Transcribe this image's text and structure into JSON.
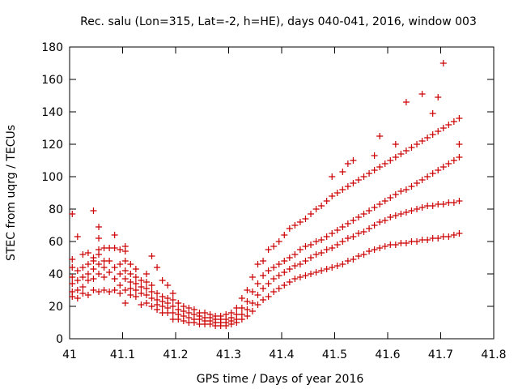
{
  "chart_data": {
    "type": "scatter",
    "title": "Rec. salu (Lon=315, Lat=-2, h=HE), days 040-041, 2016, window 003",
    "xlabel": "GPS time / Days of year 2016",
    "ylabel": "STEC from uqrg / TECUs",
    "xlim": [
      41,
      41.8
    ],
    "ylim": [
      0,
      180
    ],
    "xticks": [
      "41",
      "41.1",
      "41.2",
      "41.3",
      "41.4",
      "41.5",
      "41.6",
      "41.7",
      "41.8"
    ],
    "yticks": [
      "0",
      "20",
      "40",
      "60",
      "80",
      "100",
      "120",
      "140",
      "160",
      "180"
    ],
    "grid": false,
    "legend": "none",
    "marker": "plus",
    "color": "#cc0000",
    "points": [
      [
        41.005,
        26
      ],
      [
        41.005,
        29
      ],
      [
        41.005,
        34
      ],
      [
        41.005,
        38
      ],
      [
        41.005,
        44
      ],
      [
        41.005,
        49
      ],
      [
        41.005,
        77
      ],
      [
        41.015,
        25
      ],
      [
        41.015,
        30
      ],
      [
        41.015,
        36
      ],
      [
        41.015,
        42
      ],
      [
        41.015,
        63
      ],
      [
        41.025,
        28
      ],
      [
        41.025,
        32
      ],
      [
        41.025,
        38
      ],
      [
        41.025,
        44
      ],
      [
        41.025,
        52
      ],
      [
        41.035,
        27
      ],
      [
        41.035,
        36
      ],
      [
        41.035,
        40
      ],
      [
        41.035,
        46
      ],
      [
        41.035,
        53
      ],
      [
        41.045,
        30
      ],
      [
        41.045,
        37
      ],
      [
        41.045,
        43
      ],
      [
        41.045,
        48
      ],
      [
        41.045,
        50
      ],
      [
        41.045,
        79
      ],
      [
        41.055,
        29
      ],
      [
        41.055,
        40
      ],
      [
        41.055,
        46
      ],
      [
        41.055,
        52
      ],
      [
        41.055,
        55
      ],
      [
        41.055,
        62
      ],
      [
        41.055,
        69
      ],
      [
        41.065,
        30
      ],
      [
        41.065,
        38
      ],
      [
        41.065,
        44
      ],
      [
        41.065,
        48
      ],
      [
        41.065,
        56
      ],
      [
        41.075,
        29
      ],
      [
        41.075,
        41
      ],
      [
        41.075,
        48
      ],
      [
        41.075,
        56
      ],
      [
        41.085,
        30
      ],
      [
        41.085,
        37
      ],
      [
        41.085,
        44
      ],
      [
        41.085,
        56
      ],
      [
        41.085,
        64
      ],
      [
        41.095,
        28
      ],
      [
        41.095,
        33
      ],
      [
        41.095,
        40
      ],
      [
        41.095,
        46
      ],
      [
        41.095,
        55
      ],
      [
        41.105,
        22
      ],
      [
        41.105,
        30
      ],
      [
        41.105,
        37
      ],
      [
        41.105,
        42
      ],
      [
        41.105,
        48
      ],
      [
        41.105,
        54
      ],
      [
        41.105,
        57
      ],
      [
        41.115,
        27
      ],
      [
        41.115,
        31
      ],
      [
        41.115,
        35
      ],
      [
        41.115,
        40
      ],
      [
        41.115,
        46
      ],
      [
        41.125,
        26
      ],
      [
        41.125,
        30
      ],
      [
        41.125,
        34
      ],
      [
        41.125,
        38
      ],
      [
        41.125,
        43
      ],
      [
        41.135,
        21
      ],
      [
        41.135,
        28
      ],
      [
        41.135,
        32
      ],
      [
        41.135,
        36
      ],
      [
        41.145,
        22
      ],
      [
        41.145,
        27
      ],
      [
        41.145,
        31
      ],
      [
        41.145,
        35
      ],
      [
        41.145,
        40
      ],
      [
        41.155,
        20
      ],
      [
        41.155,
        25
      ],
      [
        41.155,
        29
      ],
      [
        41.155,
        33
      ],
      [
        41.155,
        51
      ],
      [
        41.165,
        18
      ],
      [
        41.165,
        21
      ],
      [
        41.165,
        24
      ],
      [
        41.165,
        28
      ],
      [
        41.165,
        44
      ],
      [
        41.175,
        16
      ],
      [
        41.175,
        20
      ],
      [
        41.175,
        23
      ],
      [
        41.175,
        26
      ],
      [
        41.175,
        36
      ],
      [
        41.185,
        16
      ],
      [
        41.185,
        19
      ],
      [
        41.185,
        22
      ],
      [
        41.185,
        25
      ],
      [
        41.185,
        33
      ],
      [
        41.195,
        12
      ],
      [
        41.195,
        16
      ],
      [
        41.195,
        20
      ],
      [
        41.195,
        24
      ],
      [
        41.195,
        28
      ],
      [
        41.205,
        12
      ],
      [
        41.205,
        15
      ],
      [
        41.205,
        18
      ],
      [
        41.205,
        22
      ],
      [
        41.215,
        11
      ],
      [
        41.215,
        14
      ],
      [
        41.215,
        17
      ],
      [
        41.215,
        20
      ],
      [
        41.225,
        10
      ],
      [
        41.225,
        13
      ],
      [
        41.225,
        16
      ],
      [
        41.225,
        19
      ],
      [
        41.235,
        10
      ],
      [
        41.235,
        12
      ],
      [
        41.235,
        15
      ],
      [
        41.235,
        18
      ],
      [
        41.245,
        9
      ],
      [
        41.245,
        12
      ],
      [
        41.245,
        14
      ],
      [
        41.245,
        16
      ],
      [
        41.255,
        9
      ],
      [
        41.255,
        11
      ],
      [
        41.255,
        13
      ],
      [
        41.255,
        16
      ],
      [
        41.265,
        9
      ],
      [
        41.265,
        11
      ],
      [
        41.265,
        13
      ],
      [
        41.265,
        15
      ],
      [
        41.275,
        8
      ],
      [
        41.275,
        10
      ],
      [
        41.275,
        12
      ],
      [
        41.275,
        14
      ],
      [
        41.285,
        8
      ],
      [
        41.285,
        10
      ],
      [
        41.285,
        12
      ],
      [
        41.285,
        14
      ],
      [
        41.295,
        8
      ],
      [
        41.295,
        10
      ],
      [
        41.295,
        12
      ],
      [
        41.295,
        15
      ],
      [
        41.305,
        9
      ],
      [
        41.305,
        11
      ],
      [
        41.305,
        13
      ],
      [
        41.305,
        16
      ],
      [
        41.315,
        10
      ],
      [
        41.315,
        12
      ],
      [
        41.315,
        15
      ],
      [
        41.315,
        19
      ],
      [
        41.325,
        12
      ],
      [
        41.325,
        15
      ],
      [
        41.325,
        19
      ],
      [
        41.325,
        25
      ],
      [
        41.335,
        14
      ],
      [
        41.335,
        18
      ],
      [
        41.335,
        23
      ],
      [
        41.335,
        30
      ],
      [
        41.345,
        17
      ],
      [
        41.345,
        22
      ],
      [
        41.345,
        29
      ],
      [
        41.345,
        38
      ],
      [
        41.355,
        21
      ],
      [
        41.355,
        27
      ],
      [
        41.355,
        34
      ],
      [
        41.355,
        46
      ],
      [
        41.365,
        24
      ],
      [
        41.365,
        31
      ],
      [
        41.365,
        39
      ],
      [
        41.365,
        48
      ],
      [
        41.375,
        26
      ],
      [
        41.375,
        34
      ],
      [
        41.375,
        42
      ],
      [
        41.375,
        55
      ],
      [
        41.385,
        29
      ],
      [
        41.385,
        37
      ],
      [
        41.385,
        44
      ],
      [
        41.385,
        57
      ],
      [
        41.395,
        31
      ],
      [
        41.395,
        39
      ],
      [
        41.395,
        46
      ],
      [
        41.395,
        60
      ],
      [
        41.405,
        33
      ],
      [
        41.405,
        41
      ],
      [
        41.405,
        48
      ],
      [
        41.405,
        64
      ],
      [
        41.415,
        35
      ],
      [
        41.415,
        43
      ],
      [
        41.415,
        50
      ],
      [
        41.415,
        68
      ],
      [
        41.425,
        37
      ],
      [
        41.425,
        45
      ],
      [
        41.425,
        52
      ],
      [
        41.425,
        70
      ],
      [
        41.435,
        38
      ],
      [
        41.435,
        46
      ],
      [
        41.435,
        55
      ],
      [
        41.435,
        72
      ],
      [
        41.445,
        39
      ],
      [
        41.445,
        48
      ],
      [
        41.445,
        57
      ],
      [
        41.445,
        74
      ],
      [
        41.455,
        40
      ],
      [
        41.455,
        50
      ],
      [
        41.455,
        58
      ],
      [
        41.455,
        77
      ],
      [
        41.465,
        41
      ],
      [
        41.465,
        52
      ],
      [
        41.465,
        60
      ],
      [
        41.465,
        80
      ],
      [
        41.475,
        42
      ],
      [
        41.475,
        53
      ],
      [
        41.475,
        61
      ],
      [
        41.475,
        82
      ],
      [
        41.485,
        43
      ],
      [
        41.485,
        55
      ],
      [
        41.485,
        63
      ],
      [
        41.485,
        85
      ],
      [
        41.495,
        44
      ],
      [
        41.495,
        56
      ],
      [
        41.495,
        65
      ],
      [
        41.495,
        88
      ],
      [
        41.495,
        100
      ],
      [
        41.505,
        45
      ],
      [
        41.505,
        58
      ],
      [
        41.505,
        67
      ],
      [
        41.505,
        90
      ],
      [
        41.515,
        46
      ],
      [
        41.515,
        60
      ],
      [
        41.515,
        69
      ],
      [
        41.515,
        92
      ],
      [
        41.515,
        103
      ],
      [
        41.525,
        48
      ],
      [
        41.525,
        62
      ],
      [
        41.525,
        71
      ],
      [
        41.525,
        94
      ],
      [
        41.525,
        108
      ],
      [
        41.535,
        49
      ],
      [
        41.535,
        63
      ],
      [
        41.535,
        73
      ],
      [
        41.535,
        96
      ],
      [
        41.535,
        110
      ],
      [
        41.545,
        51
      ],
      [
        41.545,
        65
      ],
      [
        41.545,
        75
      ],
      [
        41.545,
        98
      ],
      [
        41.555,
        52
      ],
      [
        41.555,
        66
      ],
      [
        41.555,
        77
      ],
      [
        41.555,
        100
      ],
      [
        41.565,
        54
      ],
      [
        41.565,
        68
      ],
      [
        41.565,
        79
      ],
      [
        41.565,
        102
      ],
      [
        41.575,
        55
      ],
      [
        41.575,
        70
      ],
      [
        41.575,
        81
      ],
      [
        41.575,
        104
      ],
      [
        41.575,
        113
      ],
      [
        41.585,
        56
      ],
      [
        41.585,
        72
      ],
      [
        41.585,
        83
      ],
      [
        41.585,
        106
      ],
      [
        41.585,
        125
      ],
      [
        41.595,
        57
      ],
      [
        41.595,
        73
      ],
      [
        41.595,
        85
      ],
      [
        41.595,
        108
      ],
      [
        41.605,
        58
      ],
      [
        41.605,
        75
      ],
      [
        41.605,
        87
      ],
      [
        41.605,
        110
      ],
      [
        41.615,
        58
      ],
      [
        41.615,
        76
      ],
      [
        41.615,
        89
      ],
      [
        41.615,
        112
      ],
      [
        41.615,
        120
      ],
      [
        41.625,
        59
      ],
      [
        41.625,
        77
      ],
      [
        41.625,
        91
      ],
      [
        41.625,
        114
      ],
      [
        41.635,
        59
      ],
      [
        41.635,
        78
      ],
      [
        41.635,
        92
      ],
      [
        41.635,
        116
      ],
      [
        41.635,
        146
      ],
      [
        41.645,
        60
      ],
      [
        41.645,
        79
      ],
      [
        41.645,
        94
      ],
      [
        41.645,
        118
      ],
      [
        41.655,
        60
      ],
      [
        41.655,
        80
      ],
      [
        41.655,
        96
      ],
      [
        41.655,
        120
      ],
      [
        41.665,
        61
      ],
      [
        41.665,
        81
      ],
      [
        41.665,
        98
      ],
      [
        41.665,
        122
      ],
      [
        41.665,
        151
      ],
      [
        41.675,
        61
      ],
      [
        41.675,
        82
      ],
      [
        41.675,
        100
      ],
      [
        41.675,
        124
      ],
      [
        41.685,
        62
      ],
      [
        41.685,
        82
      ],
      [
        41.685,
        102
      ],
      [
        41.685,
        126
      ],
      [
        41.685,
        139
      ],
      [
        41.695,
        62
      ],
      [
        41.695,
        83
      ],
      [
        41.695,
        104
      ],
      [
        41.695,
        128
      ],
      [
        41.695,
        149
      ],
      [
        41.705,
        63
      ],
      [
        41.705,
        83
      ],
      [
        41.705,
        106
      ],
      [
        41.705,
        130
      ],
      [
        41.705,
        170
      ],
      [
        41.715,
        63
      ],
      [
        41.715,
        84
      ],
      [
        41.715,
        108
      ],
      [
        41.715,
        132
      ],
      [
        41.725,
        64
      ],
      [
        41.725,
        84
      ],
      [
        41.725,
        110
      ],
      [
        41.725,
        134
      ],
      [
        41.735,
        65
      ],
      [
        41.735,
        85
      ],
      [
        41.735,
        112
      ],
      [
        41.735,
        136
      ],
      [
        41.735,
        120
      ]
    ]
  }
}
